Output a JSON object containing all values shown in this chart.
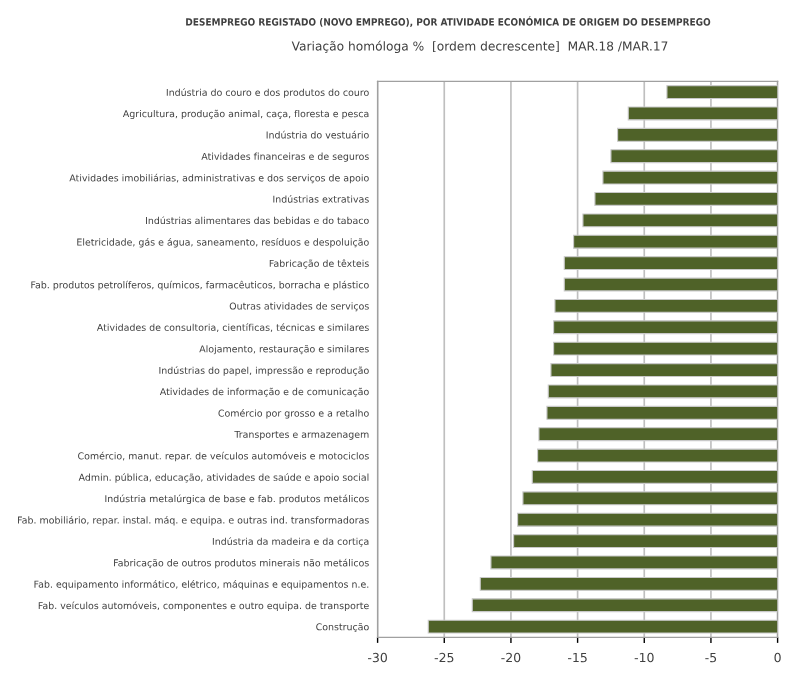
{
  "chart_data": {
    "type": "bar",
    "orientation": "horizontal",
    "title": "DESEMPREGO REGISTADO (NOVO EMPREGO), POR ATIVIDADE ECONÓMICA DE ORIGEM DO DESEMPREGO",
    "subtitle": "Variação homóloga %  [ordem decrescente]  MAR.18 /MAR.17",
    "categories": [
      "Indústria do couro e dos produtos do couro",
      "Agricultura, produção animal, caça, floresta e pesca",
      "Indústria do vestuário",
      "Atividades financeiras e de seguros",
      "Atividades imobiliárias, administrativas e dos serviços de apoio",
      "Indústrias extrativas",
      "Indústrias alimentares das bebidas e do tabaco",
      "Eletricidade, gás e água, saneamento, resíduos e despoluição",
      "Fabricação de têxteis",
      "Fab. produtos petrolíferos, químicos, farmacêuticos, borracha e plástico",
      "Outras atividades de serviços",
      "Atividades de consultoria, científicas, técnicas e similares",
      "Alojamento, restauração e similares",
      "Indústrias do papel, impressão e reprodução",
      "Atividades de informação e de comunicação",
      "Comércio por grosso e a retalho",
      "Transportes e armazenagem",
      "Comércio, manut. repar. de veículos automóveis e motociclos",
      "Admin. pública, educação, atividades de saúde e apoio social",
      "Indústria metalúrgica de base e fab. produtos metálicos",
      "Fab. mobiliário, repar. instal. máq. e equipa. e outras ind. transformadoras",
      "Indústria da madeira e da cortiça",
      "Fabricação de outros produtos minerais não metálicos",
      "Fab. equipamento informático, elétrico, máquinas e equipamentos n.e.",
      "Fab. veículos automóveis, componentes e outro equipa. de transporte",
      "Construção"
    ],
    "values": [
      -8.3,
      -11.2,
      -12.0,
      -12.5,
      -13.1,
      -13.7,
      -14.6,
      -15.3,
      -16.0,
      -16.0,
      -16.7,
      -16.8,
      -16.8,
      -17.0,
      -17.2,
      -17.3,
      -17.9,
      -18.0,
      -18.4,
      -19.1,
      -19.5,
      -19.8,
      -21.5,
      -22.3,
      -22.9,
      -26.2
    ],
    "color": "#4f6228",
    "xlim": [
      -30,
      0
    ],
    "xticks": [
      -30,
      -25,
      -20,
      -15,
      -10,
      -5,
      0
    ],
    "grid": "x"
  }
}
